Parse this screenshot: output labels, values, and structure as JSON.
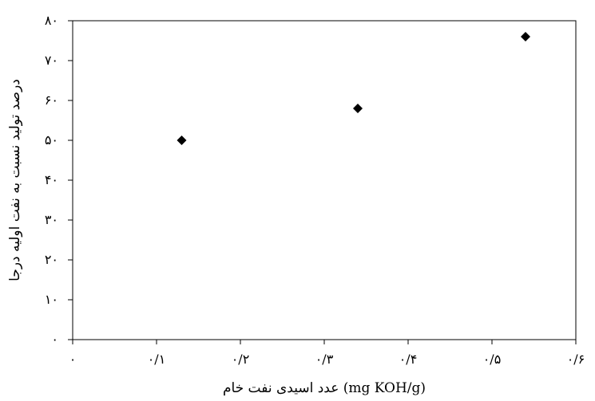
{
  "chart_data": {
    "type": "scatter",
    "title": "",
    "xlabel": "عدد اسیدی نفت خام (mg KOH/g)",
    "ylabel": "درصد تولید نسبت به نفت اولیه درجا",
    "xlim": [
      0,
      0.6
    ],
    "ylim": [
      0,
      80
    ],
    "grid": false,
    "x_ticks": [
      0,
      0.1,
      0.2,
      0.3,
      0.4,
      0.5,
      0.6
    ],
    "x_tick_labels": [
      "۰",
      "۰/۱",
      "۰/۲",
      "۰/۳",
      "۰/۴",
      "۰/۵",
      "۰/۶"
    ],
    "y_ticks": [
      0,
      10,
      20,
      30,
      40,
      50,
      60,
      70,
      80
    ],
    "y_tick_labels": [
      "۰",
      "۱۰",
      "۲۰",
      "۳۰",
      "۴۰",
      "۵۰",
      "۶۰",
      "۷۰",
      "۸۰"
    ],
    "marker": "diamond",
    "color": "#000000",
    "series": [
      {
        "x": [
          0.13,
          0.34,
          0.54
        ],
        "y": [
          50,
          58,
          76
        ]
      }
    ]
  }
}
